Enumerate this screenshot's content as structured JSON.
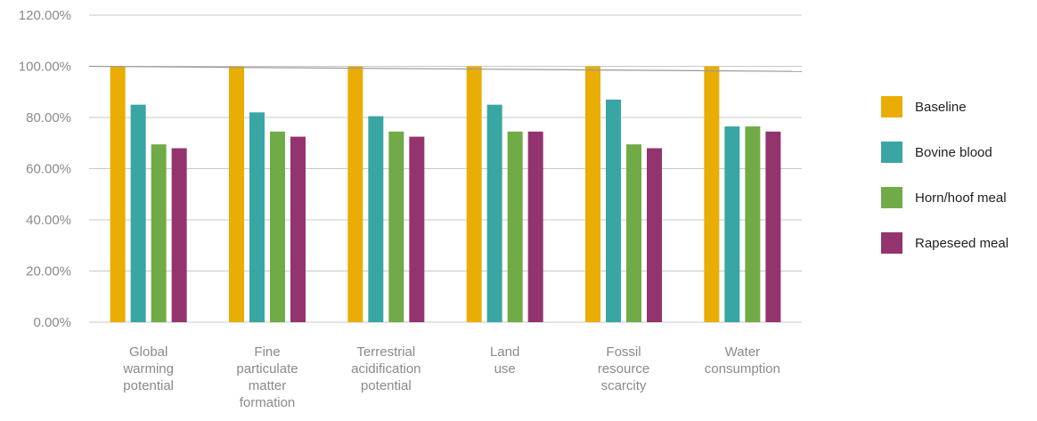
{
  "chart_data": {
    "type": "bar",
    "title": "",
    "xlabel": "",
    "ylabel": "",
    "ylim": [
      0,
      120
    ],
    "yticks": [
      "0.00%",
      "20.00%",
      "40.00%",
      "60.00%",
      "80.00%",
      "100.00%",
      "120.00%"
    ],
    "grid": true,
    "legend_position": "right",
    "categories": [
      [
        "Global",
        "warming",
        "potential"
      ],
      [
        "Fine",
        "particulate",
        "matter",
        "formation"
      ],
      [
        "Terrestrial",
        "acidification",
        "potential"
      ],
      [
        "Land",
        "use"
      ],
      [
        "Fossil",
        "resource",
        "scarcity"
      ],
      [
        "Water",
        "consumption"
      ]
    ],
    "series": [
      {
        "name": "Baseline",
        "color": "#eaad06",
        "values": [
          100,
          100,
          100,
          100,
          100,
          100
        ]
      },
      {
        "name": "Bovine blood",
        "color": "#39a6a3",
        "values": [
          85,
          82,
          80.5,
          85,
          87,
          76.5
        ]
      },
      {
        "name": "Horn/hoof meal",
        "color": "#71ab48",
        "values": [
          69.5,
          74.5,
          74.5,
          74.5,
          69.5,
          76.5
        ]
      },
      {
        "name": "Rapeseed meal",
        "color": "#94346e",
        "values": [
          68,
          72.5,
          72.5,
          74.5,
          68,
          74.5
        ]
      }
    ],
    "trend_line": {
      "color": "#999999",
      "values": [
        100,
        98
      ]
    }
  }
}
